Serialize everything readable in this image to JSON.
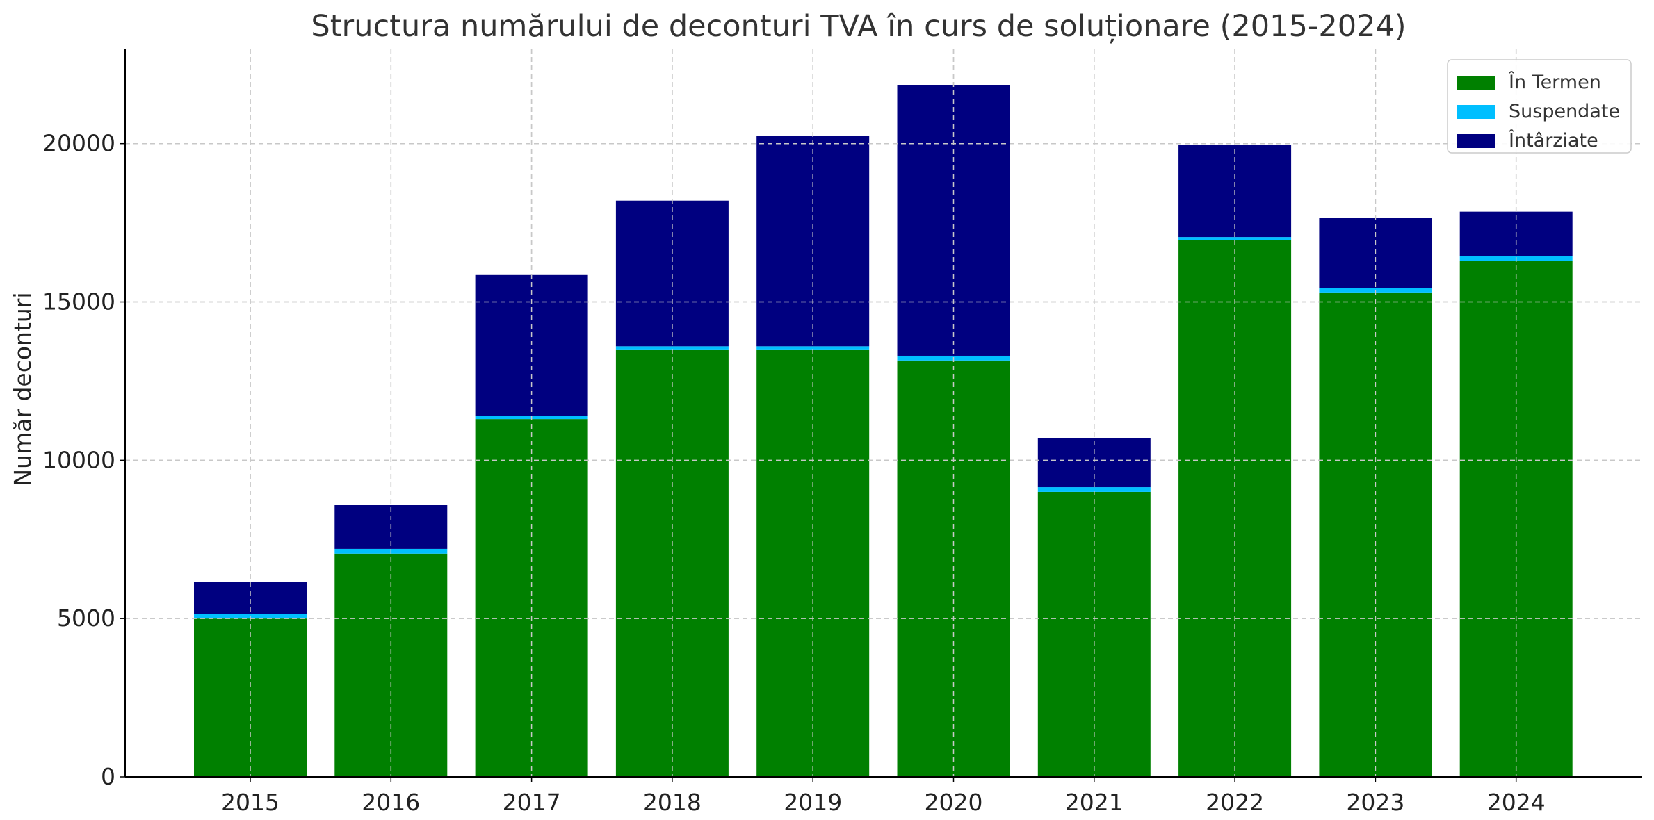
{
  "chart_data": {
    "type": "bar",
    "stacked": true,
    "title": "Structura numărului de deconturi TVA în curs de soluționare (2015-2024)",
    "xlabel": "",
    "ylabel": "Număr deconturi",
    "categories": [
      "2015",
      "2016",
      "2017",
      "2018",
      "2019",
      "2020",
      "2021",
      "2022",
      "2023",
      "2024"
    ],
    "ylim": [
      0,
      23000
    ],
    "yticks": [
      0,
      5000,
      10000,
      15000,
      20000
    ],
    "grid": true,
    "legend_position": "top-right",
    "series": [
      {
        "name": "În Termen",
        "color": "#008000",
        "values": [
          5000,
          7050,
          11300,
          13500,
          13500,
          13150,
          9000,
          16950,
          15300,
          16300
        ]
      },
      {
        "name": "Suspendate",
        "color": "#00bfff",
        "values": [
          150,
          150,
          100,
          100,
          100,
          150,
          150,
          100,
          150,
          150
        ]
      },
      {
        "name": "Întârziate",
        "color": "#000080",
        "values": [
          1000,
          1400,
          4450,
          4600,
          6650,
          8550,
          1550,
          2900,
          2200,
          1400
        ]
      }
    ]
  }
}
